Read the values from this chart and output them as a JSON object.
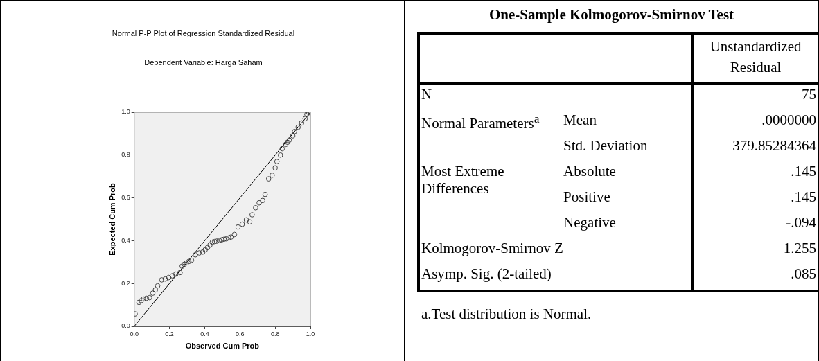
{
  "chart_data": [
    {
      "type": "scatter",
      "title": "Normal P-P Plot of Regression Standardized Residual",
      "subtitle": "Dependent Variable: Harga Saham",
      "xlabel": "Observed Cum Prob",
      "ylabel": "Expected Cum Prob",
      "xlim": [
        0,
        1
      ],
      "ylim": [
        0,
        1
      ],
      "xticks": [
        {
          "value": 0,
          "label": "0.0"
        },
        {
          "value": 0.2,
          "label": "0.2"
        },
        {
          "value": 0.4,
          "label": "0.4"
        },
        {
          "value": 0.6,
          "label": "0.6"
        },
        {
          "value": 0.8,
          "label": "0.8"
        },
        {
          "value": 1,
          "label": "1.0"
        }
      ],
      "yticks": [
        {
          "value": 0,
          "label": "0.0"
        },
        {
          "value": 0.2,
          "label": "0.2"
        },
        {
          "value": 0.4,
          "label": "0.4"
        },
        {
          "value": 0.6,
          "label": "0.6"
        },
        {
          "value": 0.8,
          "label": "0.8"
        },
        {
          "value": 1,
          "label": "1.0"
        }
      ],
      "grid": false,
      "legend": false,
      "marker": "circle",
      "series": [
        {
          "type": "scatter",
          "color": "#333333",
          "x": [
            0.005,
            0.027,
            0.04,
            0.052,
            0.069,
            0.087,
            0.105,
            0.12,
            0.133,
            0.156,
            0.176,
            0.196,
            0.216,
            0.236,
            0.26,
            0.272,
            0.284,
            0.296,
            0.31,
            0.325,
            0.347,
            0.369,
            0.389,
            0.403,
            0.416,
            0.43,
            0.443,
            0.456,
            0.469,
            0.483,
            0.496,
            0.51,
            0.523,
            0.536,
            0.549,
            0.569,
            0.589,
            0.613,
            0.636,
            0.656,
            0.669,
            0.689,
            0.709,
            0.729,
            0.743,
            0.763,
            0.783,
            0.8,
            0.81,
            0.83,
            0.84,
            0.86,
            0.87,
            0.88,
            0.9,
            0.91,
            0.93,
            0.95,
            0.97,
            0.98,
            0.99,
            1.0
          ],
          "values": [
            0.058,
            0.112,
            0.12,
            0.128,
            0.131,
            0.134,
            0.155,
            0.17,
            0.189,
            0.217,
            0.221,
            0.228,
            0.236,
            0.244,
            0.251,
            0.281,
            0.29,
            0.296,
            0.303,
            0.309,
            0.334,
            0.343,
            0.347,
            0.358,
            0.368,
            0.38,
            0.393,
            0.396,
            0.398,
            0.401,
            0.404,
            0.407,
            0.409,
            0.413,
            0.417,
            0.429,
            0.464,
            0.477,
            0.497,
            0.488,
            0.521,
            0.554,
            0.577,
            0.588,
            0.616,
            0.689,
            0.706,
            0.74,
            0.77,
            0.8,
            0.83,
            0.85,
            0.86,
            0.87,
            0.89,
            0.91,
            0.93,
            0.95,
            0.97,
            0.99,
            1.0,
            1.0
          ]
        },
        {
          "type": "line",
          "color": "#000000",
          "marker": "none",
          "x": [
            0,
            1
          ],
          "values": [
            0,
            1
          ]
        }
      ]
    },
    {
      "type": "other",
      "title": "One-Sample Kolmogorov-Smirnov Test",
      "annotations": [
        "Unstandardized Residual",
        "N",
        "75",
        "Normal Parameters$^{a}$",
        "Mean",
        ".0000000",
        "Std. Deviation",
        "379.85284364",
        "Most Extreme Differences",
        "Absolute",
        ".145",
        "Positive",
        ".145",
        "Negative",
        "-.094",
        "Kolmogorov-Smirnov Z",
        "1.255",
        "Asymp. Sig. (2-tailed)",
        ".085",
        "a.Test distribution is Normal."
      ]
    }
  ]
}
